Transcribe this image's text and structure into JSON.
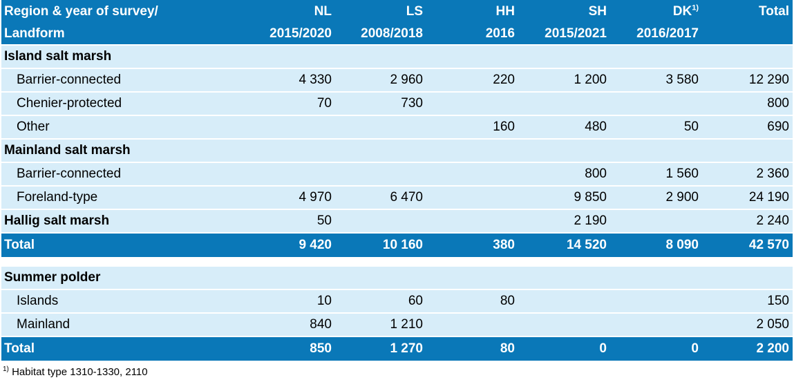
{
  "header": {
    "row1": [
      "Region & year of survey/",
      "NL",
      "LS",
      "HH",
      "SH",
      "DK",
      "Total"
    ],
    "dk_note": "1)",
    "row2": [
      "Landform",
      "2015/2020",
      "2008/2018",
      "2016",
      "2015/2021",
      "2016/2017",
      ""
    ]
  },
  "sections": [
    {
      "title": "Island salt marsh",
      "rows": [
        {
          "label": "Barrier-connected",
          "values": [
            "4 330",
            "2 960",
            "220",
            "1 200",
            "3 580",
            "12 290"
          ]
        },
        {
          "label": "Chenier-protected",
          "values": [
            "70",
            "730",
            "",
            "",
            "",
            "800"
          ]
        },
        {
          "label": "Other",
          "values": [
            "",
            "",
            "160",
            "480",
            "50",
            "690"
          ]
        }
      ]
    },
    {
      "title": "Mainland salt marsh",
      "rows": [
        {
          "label": "Barrier-connected",
          "values": [
            "",
            "",
            "",
            "800",
            "1 560",
            "2 360"
          ]
        },
        {
          "label": "Foreland-type",
          "values": [
            "4 970",
            "6 470",
            "",
            "9 850",
            "2 900",
            "24 190"
          ]
        }
      ]
    },
    {
      "title": "Hallig salt marsh",
      "values": [
        "50",
        "",
        "",
        "2 190",
        "",
        "2 240"
      ]
    }
  ],
  "total1": {
    "label": "Total",
    "values": [
      "9 420",
      "10 160",
      "380",
      "14 520",
      "8 090",
      "42 570"
    ]
  },
  "polder": {
    "title": "Summer polder",
    "rows": [
      {
        "label": "Islands",
        "values": [
          "10",
          "60",
          "80",
          "",
          "",
          "150"
        ]
      },
      {
        "label": "Mainland",
        "values": [
          "840",
          "1 210",
          "",
          "",
          "",
          "2 050"
        ]
      }
    ]
  },
  "total2": {
    "label": "Total",
    "values": [
      "850",
      "1 270",
      "80",
      "0",
      "0",
      "2 200"
    ]
  },
  "footnote": {
    "mark": "1)",
    "text": " Habitat type 1310-1330, 2110"
  }
}
